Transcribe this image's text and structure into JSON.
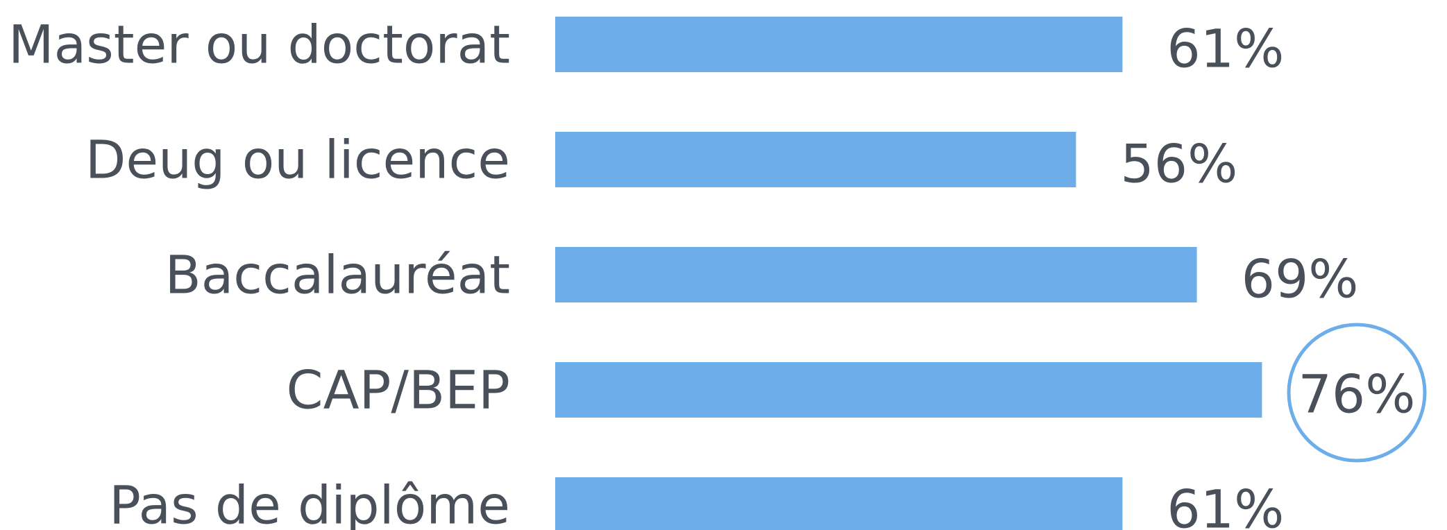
{
  "chart_data": {
    "type": "bar",
    "orientation": "horizontal",
    "categories": [
      "Master ou doctorat",
      "Deug ou licence",
      "Baccalauréat",
      "CAP/BEP",
      "Pas de diplôme"
    ],
    "values": [
      61,
      56,
      69,
      76,
      61
    ],
    "value_labels": [
      "61%",
      "56%",
      "69%",
      "76%",
      "61%"
    ],
    "unit": "%",
    "highlighted_category": "CAP/BEP",
    "colors": {
      "bar": "#6daeea",
      "text": "#4a5059",
      "highlight_ring": "#6daeea"
    },
    "title": "",
    "xlabel": "",
    "ylabel": "",
    "xlim": [
      0,
      100
    ],
    "grid": false,
    "legend": "none"
  }
}
